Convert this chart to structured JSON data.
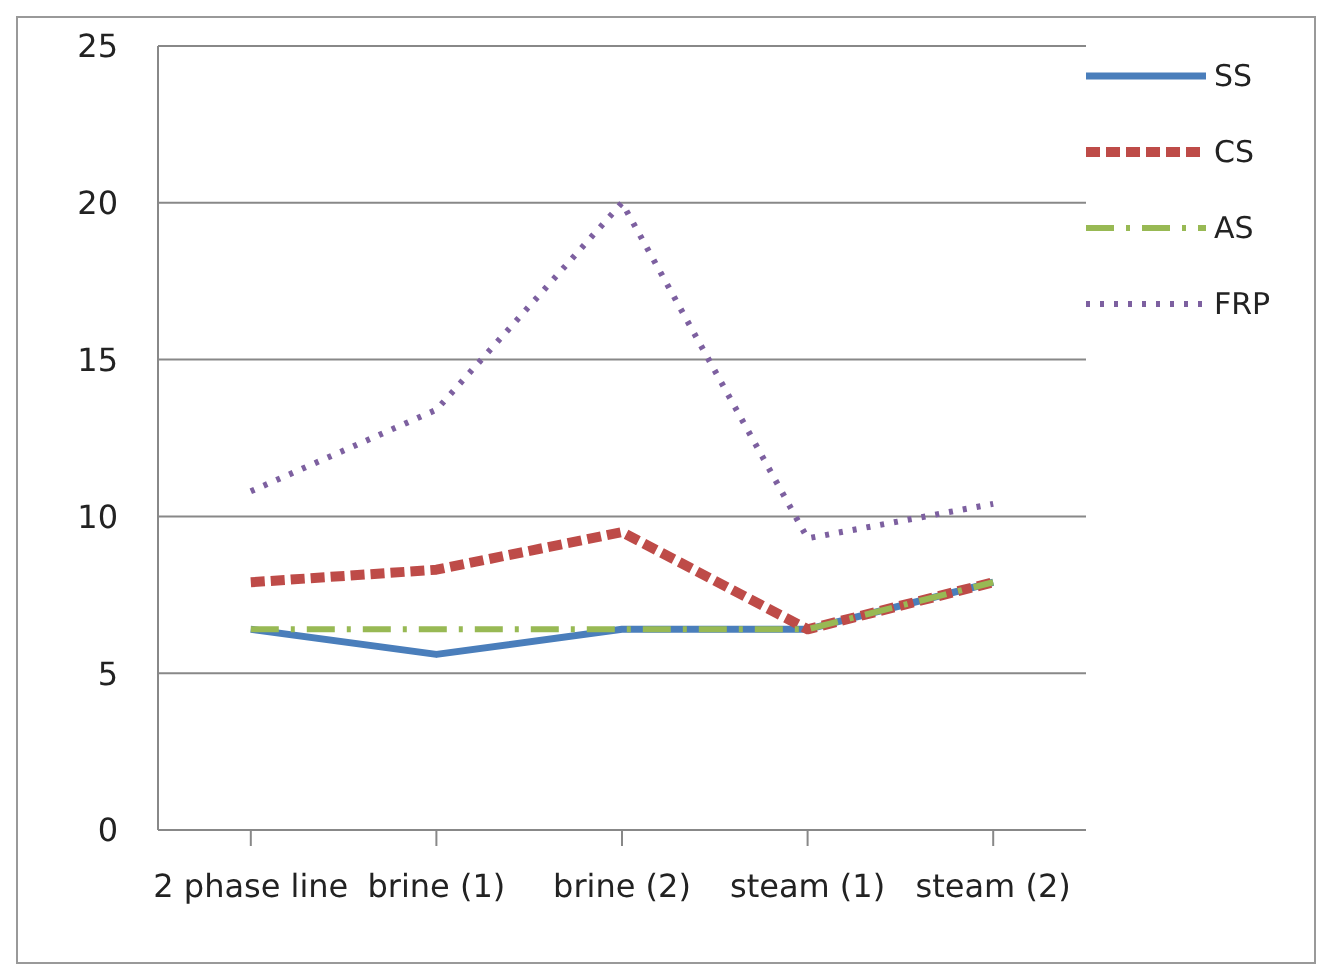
{
  "chart_data": {
    "type": "line",
    "categories": [
      "2 phase line",
      "brine (1)",
      "brine (2)",
      "steam (1)",
      "steam (2)"
    ],
    "series": [
      {
        "name": "SS",
        "color": "#4a7ebb",
        "line_style": "solid",
        "values": [
          6.4,
          5.6,
          6.4,
          6.4,
          7.9
        ]
      },
      {
        "name": "CS",
        "color": "#be4b48",
        "line_style": "dashed",
        "values": [
          7.9,
          8.3,
          9.5,
          6.4,
          7.9
        ]
      },
      {
        "name": "AS",
        "color": "#98b954",
        "line_style": "dashdot",
        "values": [
          6.4,
          6.4,
          6.4,
          6.4,
          7.9
        ]
      },
      {
        "name": "FRP",
        "color": "#7d60a0",
        "line_style": "dotted",
        "values": [
          10.8,
          13.4,
          20,
          9.3,
          10.4
        ]
      }
    ],
    "ylim": [
      0,
      25
    ],
    "yticks": [
      0,
      5,
      10,
      15,
      20,
      25
    ],
    "grid": "y",
    "legend": "top right",
    "marker": "none"
  }
}
